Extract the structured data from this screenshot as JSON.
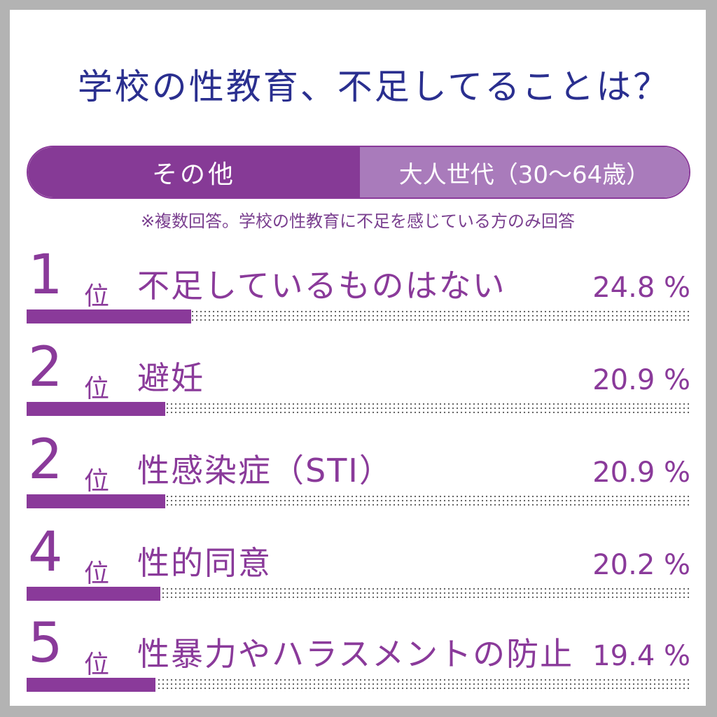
{
  "title": "学校の性教育、不足してることは？",
  "tabs": {
    "left": "その他",
    "right": "大人世代（30〜64歳）"
  },
  "note": "※複数回答。学校の性教育に不足を感じている方のみ回答",
  "rank_unit": "位",
  "pct_unit": "%",
  "colors": {
    "accent": "#8a3a9a",
    "title": "#2a2f8f",
    "tab_right": "#a97bbb"
  },
  "chart_data": {
    "type": "bar",
    "categories": [
      "不足しているものはない",
      "避妊",
      "性感染症（STI）",
      "性的同意",
      "性暴力やハラスメントの防止"
    ],
    "ranks": [
      "1",
      "2",
      "2",
      "4",
      "5"
    ],
    "values": [
      24.8,
      20.9,
      20.9,
      20.2,
      19.4
    ],
    "value_labels": [
      "24.8 %",
      "20.9 %",
      "20.9 %",
      "20.2 %",
      "19.4 %"
    ],
    "unit": "%",
    "xlim": [
      0,
      100
    ]
  }
}
